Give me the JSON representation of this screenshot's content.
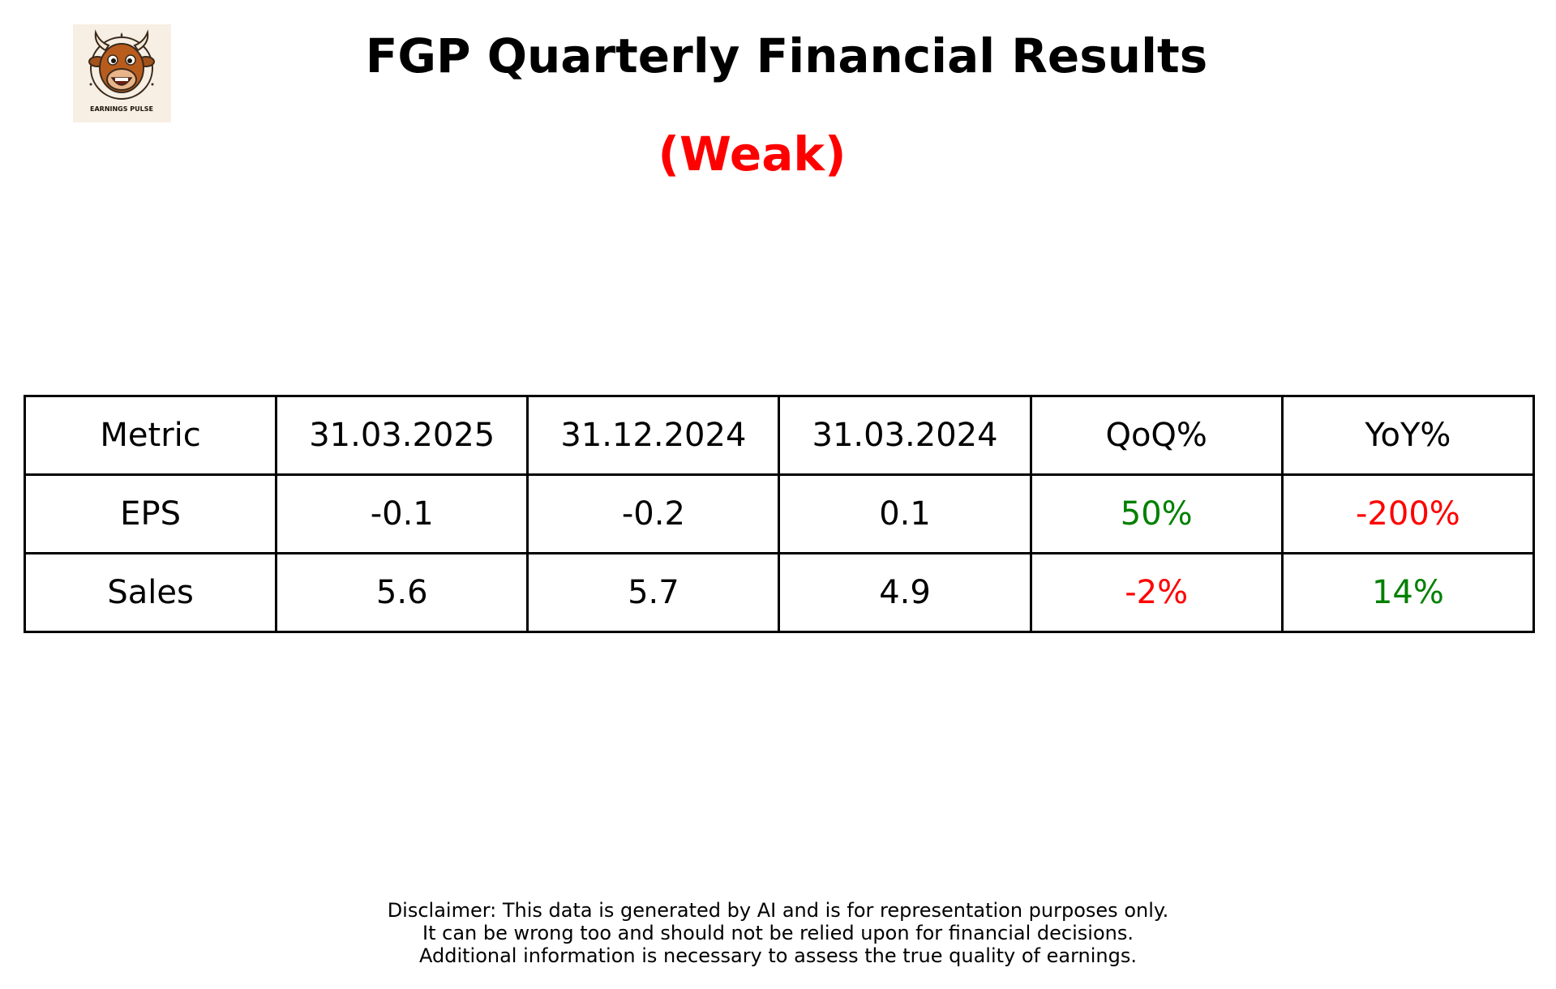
{
  "header": {
    "logo": {
      "icon": "bull-icon",
      "text": "EARNINGS PULSE",
      "background": "#f7efe3"
    },
    "title": "FGP Quarterly Financial Results",
    "rating": "(Weak)",
    "rating_color": "#ff0000"
  },
  "table": {
    "columns": [
      "Metric",
      "31.03.2025",
      "31.12.2024",
      "31.03.2024",
      "QoQ%",
      "YoY%"
    ],
    "rows": [
      {
        "metric": "EPS",
        "q1": "-0.1",
        "q2": "-0.2",
        "q3": "0.1",
        "qoq": "50%",
        "qoq_color": "#008000",
        "yoy": "-200%",
        "yoy_color": "#ff0000"
      },
      {
        "metric": "Sales",
        "q1": "5.6",
        "q2": "5.7",
        "q3": "4.9",
        "qoq": "-2%",
        "qoq_color": "#ff0000",
        "yoy": "14%",
        "yoy_color": "#008000"
      }
    ]
  },
  "disclaimer": {
    "lines": [
      "Disclaimer: This data is generated by AI and is for representation purposes only.",
      "It can be wrong too and should not be relied upon for financial decisions.",
      "Additional information is necessary to assess the true quality of earnings."
    ]
  }
}
